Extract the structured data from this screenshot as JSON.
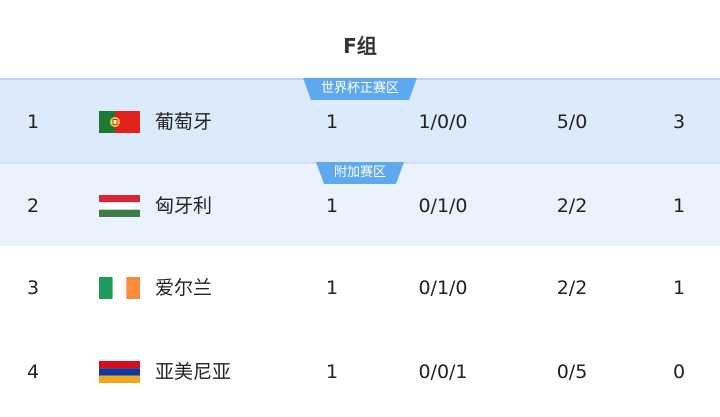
{
  "group_title": "F组",
  "zones": {
    "qualify": "世界杯正赛区",
    "playoff": "附加赛区"
  },
  "colors": {
    "badge": "#5ea8f0",
    "row_qualify": "#dcebfc",
    "row_playoff": "#eaf3fd"
  },
  "rows": [
    {
      "rank": "1",
      "team": "葡萄牙",
      "flag": "portugal-flag",
      "played": "1",
      "wdl": "1/0/0",
      "goals": "5/0",
      "points": "3"
    },
    {
      "rank": "2",
      "team": "匈牙利",
      "flag": "hungary-flag",
      "played": "1",
      "wdl": "0/1/0",
      "goals": "2/2",
      "points": "1"
    },
    {
      "rank": "3",
      "team": "爱尔兰",
      "flag": "ireland-flag",
      "played": "1",
      "wdl": "0/1/0",
      "goals": "2/2",
      "points": "1"
    },
    {
      "rank": "4",
      "team": "亚美尼亚",
      "flag": "armenia-flag",
      "played": "1",
      "wdl": "0/0/1",
      "goals": "0/5",
      "points": "0"
    }
  ]
}
